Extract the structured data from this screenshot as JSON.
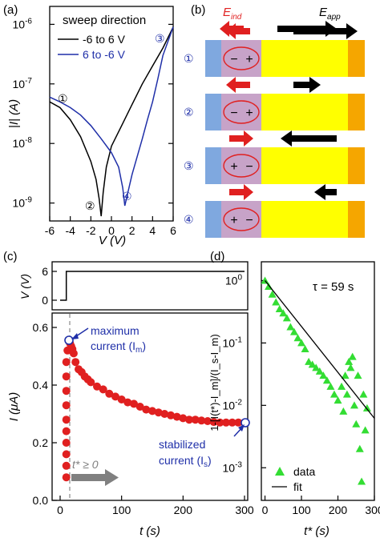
{
  "panels": {
    "a": {
      "label": "(a)",
      "legend_title": "sweep direction",
      "ylabel": "|I| (A)",
      "xlabel": "V (V)",
      "xticks": [
        "-6",
        "-4",
        "-2",
        "0",
        "2",
        "4",
        "6"
      ],
      "yticks": [
        "10",
        "10",
        "10",
        "10"
      ],
      "yexp": [
        "-9",
        "-8",
        "-7",
        "-6"
      ],
      "markers": [
        "①",
        "②",
        "③",
        "④"
      ]
    },
    "b": {
      "label": "(b)",
      "e_ind": "E",
      "e_ind_sub": "ind",
      "e_app": "E",
      "e_app_sub": "app",
      "rows": [
        "①",
        "②",
        "③",
        "④"
      ],
      "charge_a": [
        "−",
        "−",
        "+",
        "+"
      ],
      "charge_b": [
        "+",
        "+",
        "−",
        "−"
      ]
    },
    "c": {
      "label": "(c)",
      "v_ylabel": "V (V)",
      "v_yticks": [
        "0",
        "6"
      ],
      "i_ylabel": "I (μA)",
      "i_yticks": [
        "0.0",
        "0.2",
        "0.4",
        "0.6"
      ],
      "xticks": [
        "0",
        "100",
        "200",
        "300"
      ],
      "xlabel": "t (s)",
      "ann_max_1": "maximum",
      "ann_max_2": "current (I",
      "ann_max_sub": "m",
      "ann_stab_1": "stabilized",
      "ann_stab_2": "current (I",
      "ann_stab_sub": "s",
      "tstar": "t* ≥ 0"
    },
    "d": {
      "label": "(d)",
      "ylabel": "1-[I(t*)-I_m]/(I_s-I_m)",
      "xlabel": "t* (s)",
      "tau": "τ = 59 s",
      "xticks": [
        "0",
        "100",
        "200",
        "300"
      ],
      "yticks": [
        "10",
        "10",
        "10",
        "10"
      ],
      "yexp": [
        "-3",
        "-2",
        "-1",
        "0"
      ]
    }
  },
  "chart_data": [
    {
      "panel": "a",
      "type": "line",
      "xlabel": "V (V)",
      "ylabel": "|I| (A)",
      "xlim": [
        -6,
        6
      ],
      "ylim": [
        5e-10,
        2e-06
      ],
      "yscale": "log",
      "legend": "top-right",
      "series": [
        {
          "name": "-6 to 6 V",
          "color": "#000000",
          "x": [
            -6,
            -5,
            -4,
            -3,
            -2,
            -1.5,
            -1.2,
            -1.0,
            -0.8,
            -0.5,
            0,
            1,
            2,
            3,
            4,
            5,
            5.5,
            6
          ],
          "y": [
            5e-08,
            4e-08,
            2.5e-08,
            1.3e-08,
            5e-09,
            2.5e-09,
            1.2e-09,
            6e-10,
            1.5e-09,
            4e-09,
            9e-09,
            2e-08,
            4.5e-08,
            1e-07,
            2e-07,
            4e-07,
            6e-07,
            9e-07
          ]
        },
        {
          "name": "6 to -6 V",
          "color": "#1f2fa8",
          "x": [
            6,
            5,
            4.5,
            4,
            3.5,
            3,
            2.5,
            2,
            1.6,
            1.3,
            1.1,
            0.7,
            0,
            -1,
            -2,
            -3,
            -4,
            -5,
            -6
          ],
          "y": [
            9e-07,
            3e-07,
            1.2e-07,
            5e-08,
            2.5e-08,
            1.2e-08,
            6e-09,
            3e-09,
            1.5e-09,
            9e-10,
            1.8e-09,
            4e-09,
            7e-09,
            1.2e-08,
            2e-08,
            3e-08,
            4e-08,
            5e-08,
            6e-08
          ]
        }
      ]
    },
    {
      "panel": "c-top",
      "type": "line",
      "ylabel": "V (V)",
      "ylim": [
        0,
        6
      ],
      "x": [
        0,
        10,
        10,
        300
      ],
      "y": [
        0,
        0,
        6,
        6
      ]
    },
    {
      "panel": "c-bottom",
      "type": "scatter",
      "xlabel": "t (s)",
      "ylabel": "I (μA)",
      "xlim": [
        0,
        300
      ],
      "ylim": [
        0,
        0.65
      ],
      "x": [
        10,
        10,
        10,
        10,
        10,
        10,
        10,
        10,
        10,
        10,
        12,
        14,
        16,
        18,
        20,
        22,
        25,
        30,
        35,
        40,
        45,
        50,
        60,
        70,
        80,
        90,
        100,
        110,
        120,
        130,
        140,
        150,
        160,
        170,
        180,
        190,
        200,
        210,
        220,
        230,
        240,
        250,
        260,
        270,
        280,
        290,
        300
      ],
      "y": [
        0.08,
        0.12,
        0.16,
        0.2,
        0.24,
        0.28,
        0.33,
        0.38,
        0.43,
        0.48,
        0.52,
        0.555,
        0.545,
        0.535,
        0.525,
        0.51,
        0.48,
        0.455,
        0.445,
        0.43,
        0.42,
        0.41,
        0.395,
        0.385,
        0.37,
        0.36,
        0.35,
        0.34,
        0.335,
        0.325,
        0.315,
        0.31,
        0.305,
        0.3,
        0.295,
        0.29,
        0.285,
        0.28,
        0.28,
        0.277,
        0.275,
        0.272,
        0.27,
        0.27,
        0.27,
        0.27,
        0.27
      ],
      "color": "#e02020"
    },
    {
      "panel": "d",
      "type": "scatter",
      "xlabel": "t* (s)",
      "yscale": "log",
      "xlim": [
        -10,
        300
      ],
      "ylim": [
        0.0003,
        2
      ],
      "series": [
        {
          "name": "data",
          "color": "#33dd33",
          "x": [
            0,
            10,
            20,
            30,
            40,
            50,
            60,
            70,
            80,
            90,
            100,
            110,
            120,
            130,
            140,
            150,
            160,
            170,
            180,
            190,
            200,
            210,
            215,
            220,
            225,
            230,
            235,
            240,
            245,
            250,
            255,
            260,
            265,
            270,
            275,
            280
          ],
          "y": [
            1,
            0.8,
            0.6,
            0.45,
            0.35,
            0.3,
            0.25,
            0.18,
            0.15,
            0.12,
            0.1,
            0.08,
            0.05,
            0.045,
            0.04,
            0.035,
            0.03,
            0.025,
            0.02,
            0.015,
            0.012,
            0.02,
            0.008,
            0.03,
            0.015,
            0.05,
            0.04,
            0.06,
            0.01,
            0.005,
            0.03,
            0.002,
            0.0006,
            0.015,
            0.004,
            0.009
          ]
        },
        {
          "name": "fit",
          "color": "#000000",
          "x": [
            0,
            300
          ],
          "y": [
            1,
            0.0062
          ]
        }
      ]
    }
  ]
}
